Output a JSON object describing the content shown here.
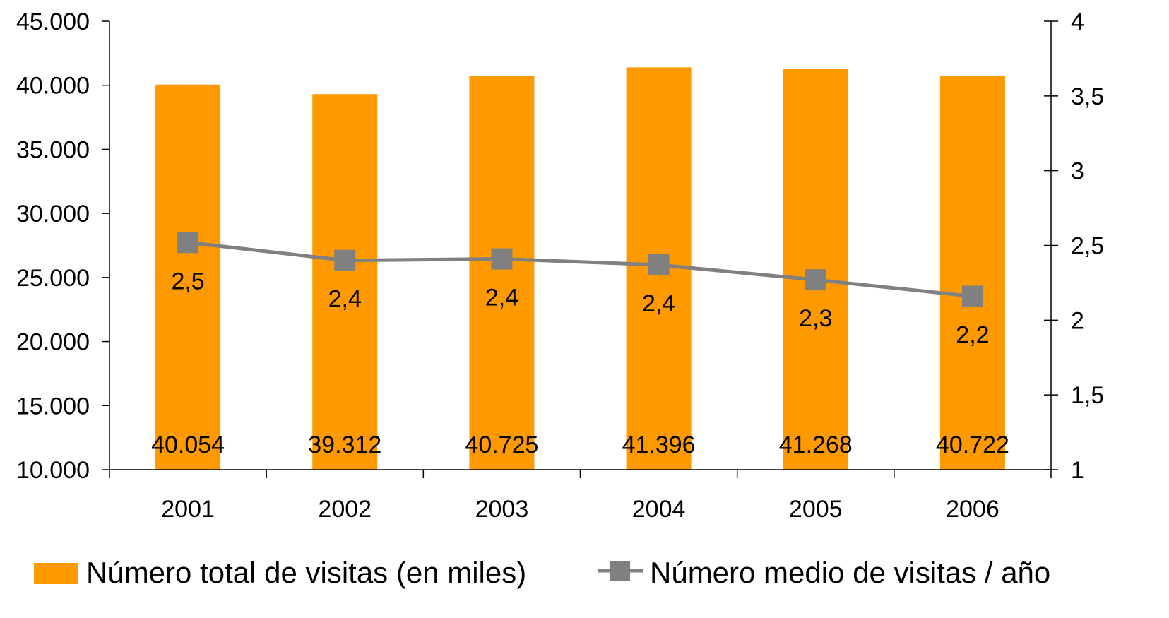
{
  "chart_data": {
    "type": "bar+line",
    "categories": [
      "2001",
      "2002",
      "2003",
      "2004",
      "2005",
      "2006"
    ],
    "series": [
      {
        "name": "Número total de visitas (en miles)",
        "type": "bar",
        "axis": "left",
        "color": "#FF9900",
        "values": [
          40054,
          39312,
          40725,
          41396,
          41268,
          40722
        ],
        "labels": [
          "40.054",
          "39.312",
          "40.725",
          "41.396",
          "41.268",
          "40.722"
        ]
      },
      {
        "name": "Número medio de visitas / año",
        "type": "line",
        "axis": "right",
        "color": "#808080",
        "marker": "square",
        "values": [
          2.52,
          2.4,
          2.41,
          2.37,
          2.27,
          2.16
        ],
        "labels": [
          "2,5",
          "2,4",
          "2,4",
          "2,4",
          "2,3",
          "2,2"
        ]
      }
    ],
    "y_left": {
      "ylim": [
        10000,
        45000
      ],
      "ticks": [
        10000,
        15000,
        20000,
        25000,
        30000,
        35000,
        40000,
        45000
      ],
      "tick_labels": [
        "10.000",
        "15.000",
        "20.000",
        "25.000",
        "30.000",
        "35.000",
        "40.000",
        "45.000"
      ]
    },
    "y_right": {
      "ylim": [
        1,
        4
      ],
      "ticks": [
        1,
        1.5,
        2,
        2.5,
        3,
        3.5,
        4
      ],
      "tick_labels": [
        "1",
        "1,5",
        "2",
        "2,5",
        "3",
        "3,5",
        "4"
      ]
    },
    "grid": false,
    "legend_position": "bottom"
  }
}
